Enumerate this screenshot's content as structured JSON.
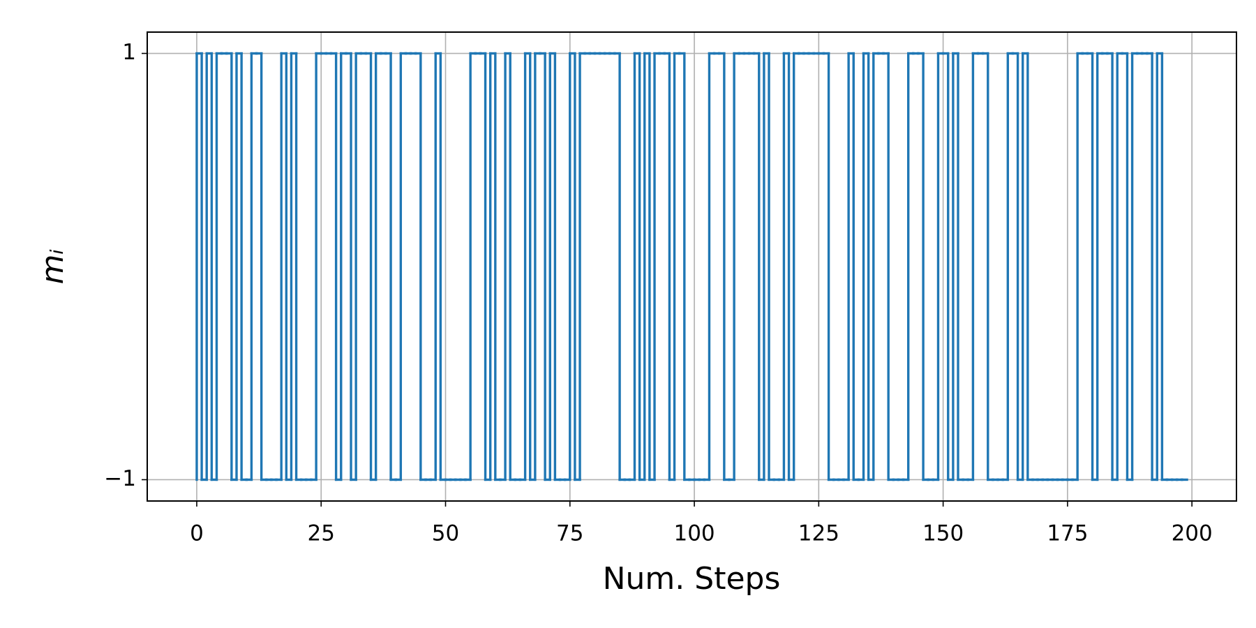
{
  "chart_data": {
    "type": "step",
    "xlabel": "Num. Steps",
    "ylabel": "mᵢ",
    "x": [
      0,
      1,
      2,
      3,
      4,
      5,
      6,
      7,
      8,
      9,
      10,
      11,
      12,
      13,
      14,
      15,
      16,
      17,
      18,
      19,
      20,
      21,
      22,
      23,
      24,
      25,
      26,
      27,
      28,
      29,
      30,
      31,
      32,
      33,
      34,
      35,
      36,
      37,
      38,
      39,
      40,
      41,
      42,
      43,
      44,
      45,
      46,
      47,
      48,
      49,
      50,
      51,
      52,
      53,
      54,
      55,
      56,
      57,
      58,
      59,
      60,
      61,
      62,
      63,
      64,
      65,
      66,
      67,
      68,
      69,
      70,
      71,
      72,
      73,
      74,
      75,
      76,
      77,
      78,
      79,
      80,
      81,
      82,
      83,
      84,
      85,
      86,
      87,
      88,
      89,
      90,
      91,
      92,
      93,
      94,
      95,
      96,
      97,
      98,
      99,
      100,
      101,
      102,
      103,
      104,
      105,
      106,
      107,
      108,
      109,
      110,
      111,
      112,
      113,
      114,
      115,
      116,
      117,
      118,
      119,
      120,
      121,
      122,
      123,
      124,
      125,
      126,
      127,
      128,
      129,
      130,
      131,
      132,
      133,
      134,
      135,
      136,
      137,
      138,
      139,
      140,
      141,
      142,
      143,
      144,
      145,
      146,
      147,
      148,
      149,
      150,
      151,
      152,
      153,
      154,
      155,
      156,
      157,
      158,
      159,
      160,
      161,
      162,
      163,
      164,
      165,
      166,
      167,
      168,
      169,
      170,
      171,
      172,
      173,
      174,
      175,
      176,
      177,
      178,
      179,
      180,
      181,
      182,
      183,
      184,
      185,
      186,
      187,
      188,
      189,
      190,
      191,
      192,
      193,
      194,
      195,
      196,
      197,
      198,
      199
    ],
    "series": [
      {
        "color": "#1f77b4",
        "values": [
          -1,
          1,
          -1,
          1,
          -1,
          1,
          1,
          1,
          -1,
          1,
          -1,
          -1,
          1,
          1,
          -1,
          -1,
          -1,
          -1,
          1,
          -1,
          1,
          -1,
          -1,
          -1,
          -1,
          1,
          1,
          1,
          1,
          -1,
          1,
          1,
          -1,
          1,
          1,
          1,
          -1,
          1,
          1,
          1,
          -1,
          -1,
          1,
          1,
          1,
          1,
          -1,
          -1,
          -1,
          1,
          -1,
          -1,
          -1,
          -1,
          -1,
          -1,
          1,
          1,
          1,
          -1,
          1,
          -1,
          -1,
          1,
          -1,
          -1,
          -1,
          1,
          -1,
          1,
          1,
          -1,
          1,
          -1,
          -1,
          -1,
          1,
          -1,
          1,
          1,
          1,
          1,
          1,
          1,
          1,
          1,
          -1,
          -1,
          -1,
          1,
          -1,
          1,
          -1,
          1,
          1,
          1,
          -1,
          1,
          1,
          -1,
          -1,
          -1,
          -1,
          -1,
          1,
          1,
          1,
          -1,
          -1,
          1,
          1,
          1,
          1,
          1,
          -1,
          1,
          -1,
          -1,
          -1,
          1,
          -1,
          1,
          1,
          1,
          1,
          1,
          1,
          1,
          -1,
          -1,
          -1,
          -1,
          1,
          -1,
          -1,
          1,
          -1,
          1,
          1,
          1,
          -1,
          -1,
          -1,
          -1,
          1,
          1,
          1,
          -1,
          -1,
          -1,
          1,
          1,
          -1,
          1,
          -1,
          -1,
          -1,
          1,
          1,
          1,
          -1,
          -1,
          -1,
          -1,
          1,
          1,
          -1,
          1,
          -1,
          -1,
          -1,
          -1,
          -1,
          -1,
          -1,
          -1,
          -1,
          -1,
          1,
          1,
          1,
          -1,
          1,
          1,
          1,
          -1,
          1,
          1,
          -1,
          1,
          1,
          1,
          1,
          -1,
          1,
          -1,
          -1,
          -1,
          -1,
          -1
        ]
      }
    ],
    "xlim": [
      -9.95,
      208.95
    ],
    "ylim": [
      -1.1,
      1.1
    ],
    "xticks": [
      0,
      25,
      50,
      75,
      100,
      125,
      150,
      175,
      200
    ],
    "yticks": [
      {
        "value": -1,
        "label": "−1"
      },
      1
    ],
    "grid": true
  }
}
